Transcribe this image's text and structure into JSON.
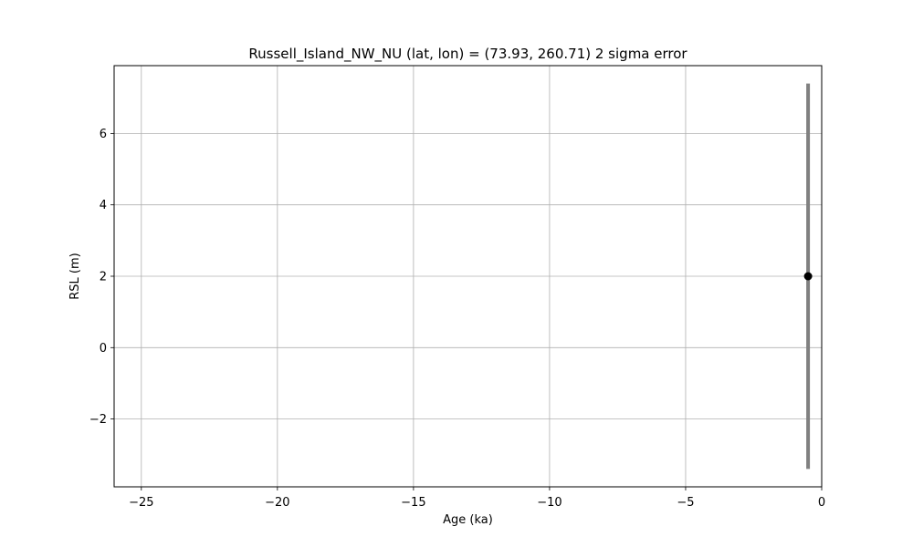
{
  "chart_data": {
    "type": "scatter",
    "title": "Russell_Island_NW_NU (lat, lon) = (73.93, 260.71)  2 sigma error",
    "xlabel": "Age (ka)",
    "ylabel": "RSL (m)",
    "xlim": [
      -26,
      0
    ],
    "ylim": [
      -3.9,
      7.9
    ],
    "xticks": [
      -25,
      -20,
      -15,
      -10,
      -5,
      0
    ],
    "xtick_labels": [
      "−25",
      "−20",
      "−15",
      "−10",
      "−5",
      "0"
    ],
    "yticks": [
      -2,
      0,
      2,
      4,
      6
    ],
    "ytick_labels": [
      "−2",
      "0",
      "2",
      "4",
      "6"
    ],
    "grid": true,
    "legend": "none",
    "series": [
      {
        "points": [
          {
            "x": -0.5,
            "y": 2.0,
            "y_low": -3.4,
            "y_high": 7.4
          }
        ],
        "marker_color": "#000000",
        "errorbar_color": "#808080"
      }
    ]
  }
}
